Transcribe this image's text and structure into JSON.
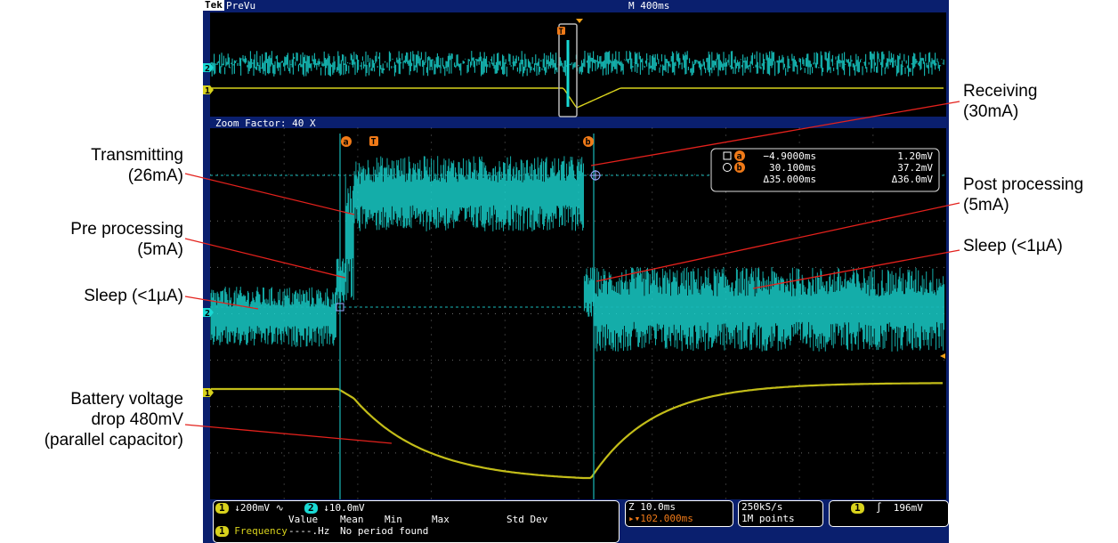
{
  "annotations": {
    "transmitting": "Transmitting\n(26mA)",
    "pre_processing": "Pre processing\n(5mA)",
    "sleep_left": "Sleep (<1µA)",
    "battery": "Battery voltage\ndrop 480mV\n(parallel capacitor)",
    "receiving": "Receiving\n(30mA)",
    "post_processing": "Post processing\n(5mA)",
    "sleep_right": "Sleep (<1µA)"
  },
  "scope": {
    "brand": "Tek",
    "mode": "PreVu",
    "timebase": "M 400ms",
    "zoom_label": "Zoom Factor: 40 X",
    "channel_markers": [
      "2",
      "1"
    ],
    "cursor_a": "a",
    "cursor_b": "b",
    "trigger_marker": "T",
    "cursor_readout": {
      "a_time": "−4.9000ms",
      "a_value": "1.20mV",
      "b_time": "30.100ms",
      "b_value": "37.2mV",
      "delta_time": "Δ35.000ms",
      "delta_value": "Δ36.0mV"
    },
    "ch1_scale": "↓200mV ∿",
    "ch2_scale": "↓10.0mV",
    "zoom_time": "Z 10.0ms",
    "trigger_pos": "▸▾102.000ms",
    "sample_rate": "250kS/s",
    "record_length": "1M points",
    "trigger_channel": "1",
    "trigger_slope": "∫",
    "trigger_level": "196mV",
    "meas_headers": [
      "Value",
      "Mean",
      "Min",
      "Max",
      "Std Dev"
    ],
    "meas_name": "Frequency",
    "meas_value": "----.Hz",
    "meas_note": "No period found",
    "colors": {
      "ch1": "#d8d21c",
      "ch2": "#19d9d4",
      "cursor_label": "#f07a18",
      "background": "#000000",
      "frame": "#0a1f6e"
    }
  }
}
